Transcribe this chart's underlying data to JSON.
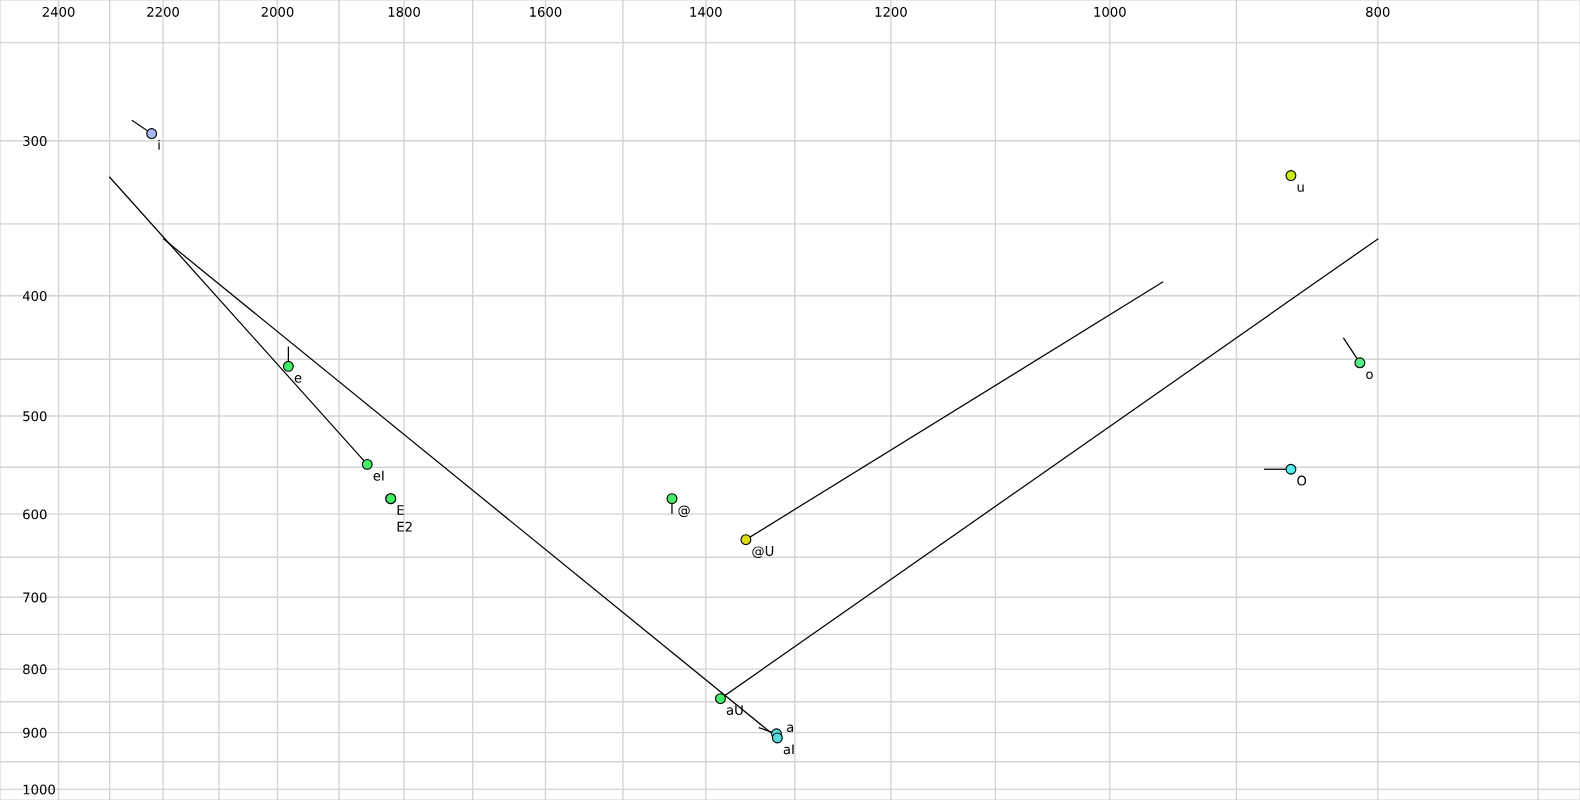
{
  "chart_data": {
    "type": "scatter",
    "log": "xy",
    "grid": true,
    "xlim": [
      2520,
      676
    ],
    "ylim": [
      1020,
      231
    ],
    "xticks": [
      2400,
      {
        "value": 2300,
        "label": null
      },
      2200,
      {
        "value": 2100,
        "label": null
      },
      2000,
      {
        "value": 1900,
        "label": null
      },
      1800,
      {
        "value": 1700,
        "label": null
      },
      1600,
      {
        "value": 1500,
        "label": null
      },
      1400,
      {
        "value": 1300,
        "label": null
      },
      1200,
      {
        "value": 1100,
        "label": null
      },
      1000,
      {
        "value": 900,
        "label": null
      },
      800,
      {
        "value": 700,
        "label": null
      }
    ],
    "yticks": [
      {
        "value": 250,
        "label": null
      },
      300,
      {
        "value": 350,
        "label": null
      },
      400,
      {
        "value": 450,
        "label": null
      },
      500,
      {
        "value": 550,
        "label": null
      },
      600,
      {
        "value": 650,
        "label": null
      },
      700,
      {
        "value": 750,
        "label": null
      },
      800,
      {
        "value": 850,
        "label": null
      },
      900,
      {
        "value": 950,
        "label": null
      },
      1000
    ],
    "series": [
      {
        "type": "line",
        "color": "#000000",
        "x": [
          2300,
          1856
        ],
        "values": [
          321,
          547
        ]
      },
      {
        "type": "line",
        "color": "#000000",
        "x": [
          2199,
          1319
        ],
        "values": [
          360,
          909
        ]
      },
      {
        "type": "line",
        "color": "#000000",
        "x": [
          1383,
          800
        ],
        "values": [
          845,
          360
        ]
      },
      {
        "type": "line",
        "color": "#000000",
        "x": [
          1354,
          957
        ],
        "values": [
          629,
          390
        ]
      },
      {
        "type": "line",
        "color": "#000000",
        "x": [
          2221,
          2257
        ],
        "values": [
          296,
          289
        ]
      },
      {
        "type": "line",
        "color": "#000000",
        "x": [
          1982,
          1982
        ],
        "values": [
          456,
          440
        ]
      },
      {
        "type": "line",
        "color": "#000000",
        "x": [
          1440,
          1440
        ],
        "values": [
          583,
          599
        ]
      },
      {
        "type": "line",
        "color": "#000000",
        "x": [
          812,
          823
        ],
        "values": [
          453,
          433
        ]
      },
      {
        "type": "line",
        "color": "#000000",
        "x": [
          860,
          879
        ],
        "values": [
          552,
          552
        ]
      },
      {
        "type": "line",
        "color": "#000000",
        "x": [
          1320,
          1339
        ],
        "values": [
          902,
          892
        ]
      },
      {
        "marker": "circle",
        "x": [
          2221,
          860,
          1982,
          1856,
          1820,
          1820,
          1440,
          1354,
          1383,
          1320,
          1319,
          812,
          860
        ],
        "values": [
          296,
          320,
          456,
          547,
          583,
          583,
          583,
          629,
          845,
          902,
          909,
          453,
          552
        ],
        "colors": [
          "#a8b8f0",
          "#c8ee10",
          "#44ee66",
          "#44ee66",
          "#44ee66",
          "#44ee66",
          "#44ee66",
          "#dddd11",
          "#44ee66",
          "#55dddd",
          "#55dddd",
          "#55ee88",
          "#55eeee"
        ]
      }
    ],
    "annotations": [
      {
        "text": "i",
        "x": 2221,
        "y": 296
      },
      {
        "text": "u",
        "x": 860,
        "y": 320
      },
      {
        "text": "e",
        "x": 1982,
        "y": 456
      },
      {
        "text": "eI",
        "x": 1856,
        "y": 547
      },
      {
        "text": "E",
        "x": 1820,
        "y": 583
      },
      {
        "text": "E2",
        "x": 1820,
        "y": 583
      },
      {
        "text": "@",
        "x": 1440,
        "y": 583
      },
      {
        "text": "@U",
        "x": 1354,
        "y": 629
      },
      {
        "text": "aU",
        "x": 1383,
        "y": 845
      },
      {
        "text": "a",
        "x": 1320,
        "y": 902
      },
      {
        "text": "aI",
        "x": 1319,
        "y": 909
      },
      {
        "text": "o",
        "x": 812,
        "y": 453
      },
      {
        "text": "O",
        "x": 860,
        "y": 552
      }
    ]
  }
}
